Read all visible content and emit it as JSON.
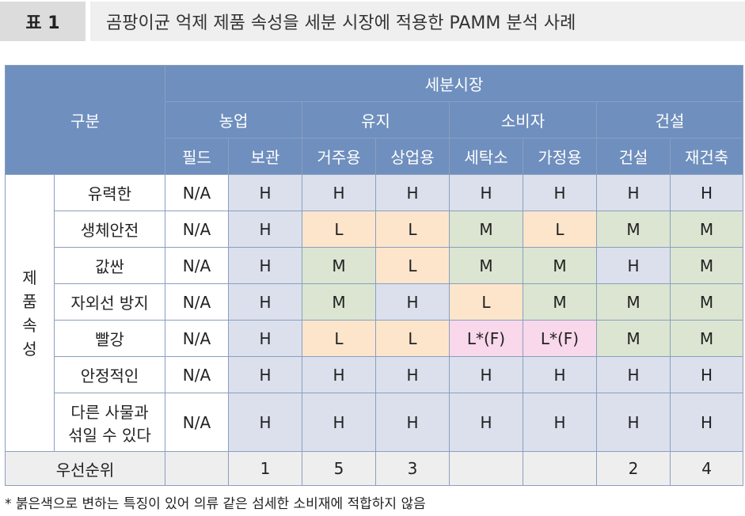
{
  "title": {
    "label": "표 1",
    "text": "곰팡이균 억제 제품 속성을 세분 시장에 적용한 PAMM 분석 사례"
  },
  "table": {
    "corner": "구분",
    "top_header": "세분시장",
    "groups": [
      "농업",
      "유지",
      "소비자",
      "건설"
    ],
    "subgroups": [
      "필드",
      "보관",
      "거주용",
      "상업용",
      "세탁소",
      "가정용",
      "건설",
      "재건축"
    ],
    "side_label": [
      "제",
      "품",
      "속",
      "성"
    ],
    "rows": [
      {
        "attr": [
          "유력한"
        ],
        "cells": [
          "N/A",
          "H",
          "H",
          "H",
          "H",
          "H",
          "H",
          "H"
        ]
      },
      {
        "attr": [
          "생체안전"
        ],
        "cells": [
          "N/A",
          "H",
          "L",
          "L",
          "M",
          "L",
          "M",
          "M"
        ]
      },
      {
        "attr": [
          "값싼"
        ],
        "cells": [
          "N/A",
          "H",
          "M",
          "L",
          "M",
          "M",
          "H",
          "M"
        ]
      },
      {
        "attr": [
          "자외선 방지"
        ],
        "cells": [
          "N/A",
          "H",
          "M",
          "H",
          "L",
          "M",
          "M",
          "M"
        ]
      },
      {
        "attr": [
          "빨강"
        ],
        "cells": [
          "N/A",
          "H",
          "L",
          "L",
          "L*(F)",
          "L*(F)",
          "M",
          "M"
        ]
      },
      {
        "attr": [
          "안정적인"
        ],
        "cells": [
          "N/A",
          "H",
          "H",
          "H",
          "H",
          "H",
          "H",
          "H"
        ]
      },
      {
        "attr": [
          "다른 사물과",
          "섞일 수 있다"
        ],
        "cells": [
          "N/A",
          "H",
          "H",
          "H",
          "H",
          "H",
          "H",
          "H"
        ]
      }
    ],
    "priority": {
      "label": "우선순위",
      "values": [
        "",
        "1",
        "5",
        "3",
        "",
        "",
        "2",
        "4"
      ]
    }
  },
  "footnote": "* 붉은색으로 변하는 특징이 있어 의류 같은 섬세한 소비재에 적합하지 않음",
  "colors": {
    "header": "#6f8fbe",
    "H": "#dbe0ec",
    "L": "#fde5cc",
    "M": "#dbe5d1",
    "LF": "#f8d8ea",
    "priority_row": "#eeeeee"
  }
}
